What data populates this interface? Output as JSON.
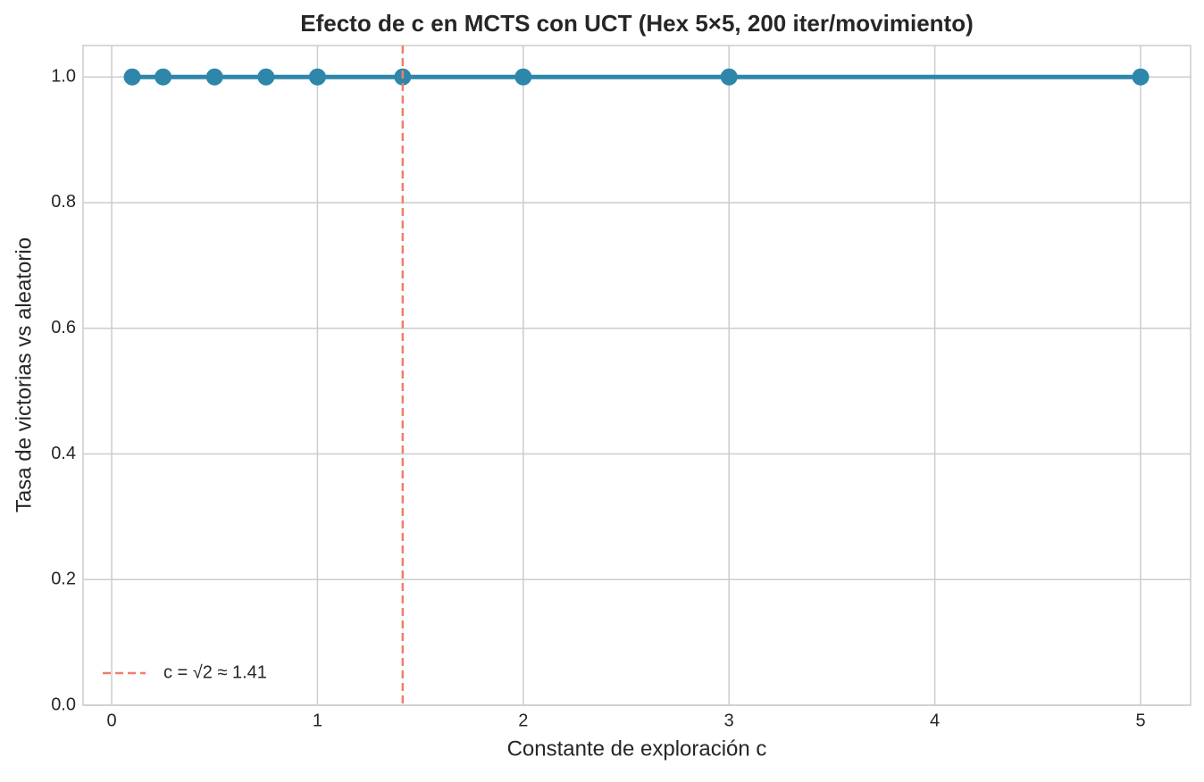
{
  "chart_data": {
    "type": "line",
    "title": "Efecto de c en MCTS con UCT (Hex 5×5, 200 iter/movimiento)",
    "xlabel": "Constante de exploración c",
    "ylabel": "Tasa de victorias vs aleatorio",
    "x": [
      0.1,
      0.25,
      0.5,
      0.75,
      1,
      1.4142,
      2,
      3,
      5
    ],
    "series": [
      {
        "color": "#2e86ab",
        "values": [
          1,
          1,
          1,
          1,
          1,
          1,
          1,
          1,
          1
        ]
      }
    ],
    "vlines": [
      {
        "x": 1.4142,
        "label": "c = √2 ≈ 1.41",
        "color": "#f07f6a",
        "dashed": true
      }
    ],
    "xlim": [
      -0.139,
      5.243
    ],
    "ylim": [
      0,
      1.05
    ],
    "xticks": [
      0,
      1,
      2,
      3,
      4,
      5
    ],
    "yticks": [
      {
        "value": 0,
        "label": "0.0"
      },
      0.2,
      0.4,
      0.6,
      0.8,
      {
        "value": 1,
        "label": "1.0"
      }
    ],
    "grid": true,
    "legend": "lower left"
  }
}
